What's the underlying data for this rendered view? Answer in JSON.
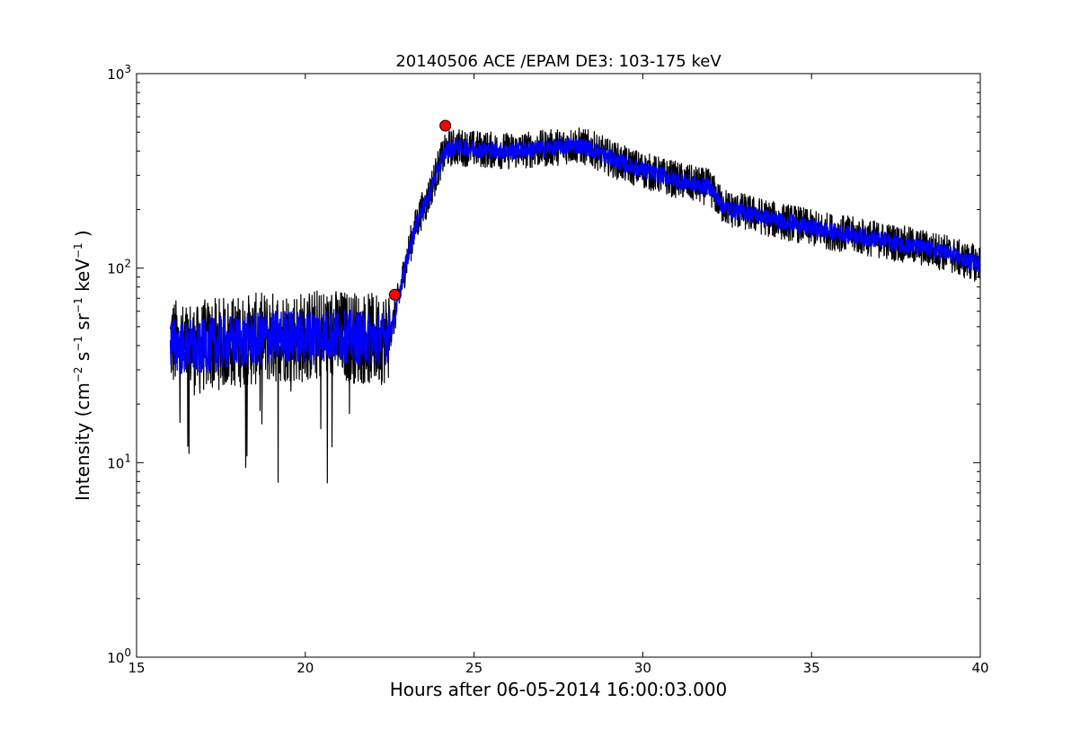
{
  "chart_data": {
    "type": "line",
    "title": "20140506 ACE /EPAM DE3: 103-175 keV",
    "xlabel": "Hours after 06-05-2014 16:00:03.000",
    "ylabel": {
      "base": "Intensity (cm",
      "exp1": "−2",
      "mid1": " s",
      "exp2": "−1",
      "mid2": " sr",
      "exp3": "−1",
      "mid3": " keV",
      "exp4": "−1",
      "end": " )"
    },
    "xlim": [
      15,
      40
    ],
    "ylim": [
      1,
      1000
    ],
    "yscale": "log",
    "x_ticks": [
      15,
      20,
      25,
      30,
      35,
      40
    ],
    "x_tick_labels": [
      "15",
      "20",
      "25",
      "30",
      "35",
      "40"
    ],
    "y_ticks": [
      {
        "value": 1,
        "base": "10",
        "exp": "0"
      },
      {
        "value": 10,
        "base": "10",
        "exp": "1"
      },
      {
        "value": 100,
        "base": "10",
        "exp": "2"
      },
      {
        "value": 1000,
        "base": "10",
        "exp": "3"
      }
    ],
    "grid": false,
    "series": [
      {
        "color": "#000000",
        "style": "raw",
        "x": [
          16.0,
          16.2,
          16.4,
          16.6,
          16.8,
          17.0,
          17.5,
          18.0,
          18.5,
          19.0,
          19.5,
          20.0,
          20.5,
          21.0,
          21.5,
          22.0,
          22.4,
          22.6,
          22.8,
          23.0,
          23.2,
          23.4,
          23.6,
          23.8,
          24.0,
          24.2,
          24.5,
          25.0,
          25.5,
          26.0,
          26.5,
          27.0,
          27.5,
          28.0,
          28.5,
          29.0,
          29.5,
          30.0,
          30.5,
          31.0,
          31.5,
          32.0,
          32.3,
          32.6,
          33.0,
          33.5,
          34.0,
          34.5,
          35.0,
          35.5,
          36.0,
          36.5,
          37.0,
          37.5,
          38.0,
          38.5,
          39.0,
          39.5,
          40.0
        ],
        "y": [
          42,
          40,
          38,
          40,
          37,
          40,
          41,
          42,
          43,
          44,
          45,
          44,
          46,
          45,
          44,
          43,
          44,
          52,
          75,
          110,
          150,
          190,
          220,
          280,
          350,
          410,
          420,
          410,
          405,
          400,
          405,
          410,
          420,
          430,
          410,
          370,
          340,
          320,
          300,
          285,
          270,
          260,
          215,
          200,
          195,
          185,
          175,
          170,
          160,
          155,
          150,
          145,
          140,
          135,
          130,
          125,
          120,
          110,
          105
        ]
      },
      {
        "color": "#0000ff",
        "style": "smoothed",
        "x": [
          16.0,
          16.2,
          16.4,
          16.6,
          16.8,
          17.0,
          17.5,
          18.0,
          18.5,
          19.0,
          19.5,
          20.0,
          20.5,
          21.0,
          21.5,
          22.0,
          22.4,
          22.6,
          22.8,
          23.0,
          23.2,
          23.4,
          23.6,
          23.8,
          24.0,
          24.2,
          24.5,
          25.0,
          25.5,
          26.0,
          26.5,
          27.0,
          27.5,
          28.0,
          28.5,
          29.0,
          29.5,
          30.0,
          30.5,
          31.0,
          31.5,
          32.0,
          32.3,
          32.6,
          33.0,
          33.5,
          34.0,
          34.5,
          35.0,
          35.5,
          36.0,
          36.5,
          37.0,
          37.5,
          38.0,
          38.5,
          39.0,
          39.5,
          40.0
        ],
        "y": [
          42,
          40,
          38,
          40,
          37,
          40,
          41,
          42,
          43,
          44,
          45,
          44,
          46,
          45,
          44,
          43,
          44,
          52,
          75,
          110,
          150,
          190,
          220,
          280,
          350,
          410,
          420,
          410,
          405,
          400,
          405,
          410,
          420,
          430,
          410,
          370,
          340,
          320,
          300,
          285,
          270,
          260,
          215,
          200,
          195,
          185,
          175,
          170,
          160,
          155,
          150,
          145,
          140,
          135,
          130,
          125,
          120,
          110,
          105
        ]
      }
    ],
    "markers": [
      {
        "type": "circle",
        "x": 22.65,
        "y": 73,
        "color": "#ff0000"
      },
      {
        "type": "circle",
        "x": 24.15,
        "y": 540,
        "color": "#ff0000"
      }
    ]
  }
}
